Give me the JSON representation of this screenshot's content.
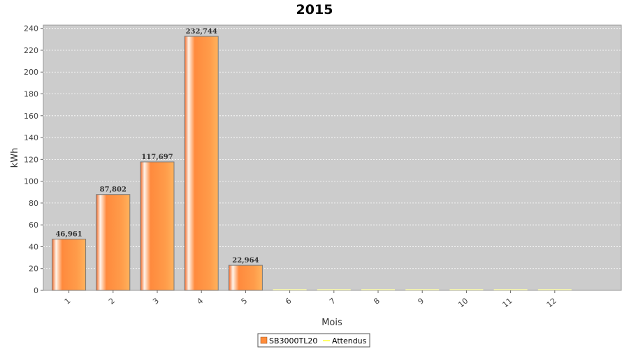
{
  "chart_data": {
    "type": "bar",
    "title": "2015",
    "xlabel": "Mois",
    "ylabel": "kWh",
    "categories": [
      "1",
      "2",
      "3",
      "4",
      "5",
      "6",
      "7",
      "8",
      "9",
      "10",
      "11",
      "12"
    ],
    "series": [
      {
        "name": "SB3000TL20",
        "type": "bar",
        "values": [
          46.961,
          87.802,
          117.697,
          232.744,
          22.964,
          0,
          0,
          0,
          0,
          0,
          0,
          0
        ],
        "labels": [
          "46,961",
          "87,802",
          "117,697",
          "232,744",
          "22,964",
          "",
          "",
          "",
          "",
          "",
          "",
          ""
        ],
        "color": "#ff8c3a"
      },
      {
        "name": "Attendus",
        "type": "line",
        "values": [
          0,
          0,
          0,
          0,
          0,
          0,
          0,
          0,
          0,
          0,
          0,
          0
        ],
        "color": "#ffff99"
      }
    ],
    "ylim": [
      0,
      243
    ],
    "yticks": [
      0,
      20,
      40,
      60,
      80,
      100,
      120,
      140,
      160,
      180,
      200,
      220,
      240
    ],
    "grid": true,
    "legend": "bottom-center",
    "plot_background": "#cccccc"
  }
}
